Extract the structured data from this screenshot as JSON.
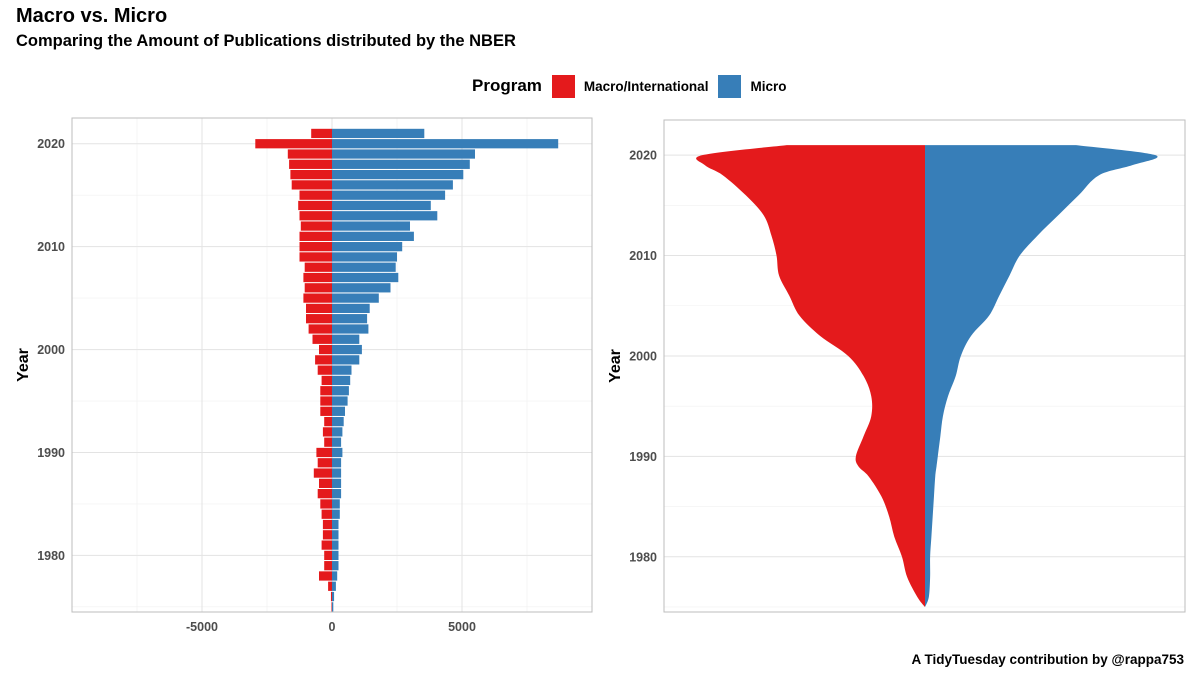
{
  "header": {
    "title": "Macro vs. Micro",
    "subtitle": "Comparing the Amount of Publications distributed by the NBER"
  },
  "legend": {
    "title": "Program",
    "items": [
      {
        "label": "Macro/International",
        "color": "#E41A1C"
      },
      {
        "label": "Micro",
        "color": "#377EB8"
      }
    ]
  },
  "caption": "A TidyTuesday contribution by @rappa753",
  "chart_data": [
    {
      "type": "bar",
      "orientation": "horizontal-diverging",
      "ylabel": "Year",
      "xlabel": "",
      "xlim": [
        -10000,
        10000
      ],
      "x_ticks": [
        -5000,
        0,
        5000
      ],
      "x_tick_labels": [
        "-5000",
        "0",
        "5000"
      ],
      "y_ticks": [
        1980,
        1990,
        2000,
        2010,
        2020
      ],
      "ylim": [
        1974.5,
        2022.5
      ],
      "grid": true,
      "years": [
        1975,
        1976,
        1977,
        1978,
        1979,
        1980,
        1981,
        1982,
        1983,
        1984,
        1985,
        1986,
        1987,
        1988,
        1989,
        1990,
        1991,
        1992,
        1993,
        1994,
        1995,
        1996,
        1997,
        1998,
        1999,
        2000,
        2001,
        2002,
        2003,
        2004,
        2005,
        2006,
        2007,
        2008,
        2009,
        2010,
        2011,
        2012,
        2013,
        2014,
        2015,
        2016,
        2017,
        2018,
        2019,
        2020,
        2021
      ],
      "series": [
        {
          "name": "Macro/International",
          "color": "#E41A1C",
          "values": [
            -20,
            -40,
            -150,
            -500,
            -300,
            -300,
            -400,
            -350,
            -350,
            -400,
            -450,
            -550,
            -500,
            -700,
            -550,
            -600,
            -300,
            -350,
            -300,
            -450,
            -450,
            -450,
            -400,
            -550,
            -650,
            -500,
            -750,
            -900,
            -1000,
            -1000,
            -1100,
            -1050,
            -1100,
            -1050,
            -1250,
            -1250,
            -1250,
            -1200,
            -1250,
            -1300,
            -1250,
            -1550,
            -1600,
            -1650,
            -1700,
            -2950,
            -800
          ]
        },
        {
          "name": "Micro",
          "color": "#377EB8",
          "values": [
            50,
            80,
            150,
            200,
            250,
            250,
            250,
            250,
            250,
            300,
            300,
            350,
            350,
            350,
            350,
            400,
            350,
            400,
            450,
            500,
            600,
            650,
            700,
            750,
            1050,
            1150,
            1050,
            1400,
            1350,
            1450,
            1800,
            2250,
            2550,
            2450,
            2500,
            2700,
            3150,
            3000,
            4050,
            3800,
            4350,
            4650,
            5050,
            5300,
            5500,
            8700,
            3550
          ]
        }
      ]
    },
    {
      "type": "area",
      "subtype": "mirrored-density",
      "ylabel": "Year",
      "xlabel": "",
      "y_ticks": [
        1980,
        1990,
        2000,
        2010,
        2020
      ],
      "ylim": [
        1974.5,
        2023.5
      ],
      "grid": true,
      "years": [
        1975,
        1976,
        1978,
        1980,
        1982,
        1984,
        1986,
        1988,
        1989,
        1990,
        1992,
        1994,
        1996,
        1998,
        2000,
        2002,
        2004,
        2006,
        2008,
        2010,
        2012,
        2014,
        2016,
        2018,
        2019,
        2020,
        2021
      ],
      "series": [
        {
          "name": "Macro/International",
          "color": "#E41A1C",
          "values": [
            0.0,
            0.03,
            0.07,
            0.09,
            0.12,
            0.14,
            0.17,
            0.22,
            0.26,
            0.27,
            0.24,
            0.21,
            0.21,
            0.24,
            0.3,
            0.41,
            0.49,
            0.53,
            0.57,
            0.58,
            0.6,
            0.63,
            0.7,
            0.79,
            0.86,
            0.87,
            0.54
          ]
        },
        {
          "name": "Micro",
          "color": "#377EB8",
          "values": [
            0.0,
            0.015,
            0.02,
            0.02,
            0.025,
            0.03,
            0.035,
            0.04,
            0.045,
            0.05,
            0.06,
            0.07,
            0.09,
            0.12,
            0.14,
            0.18,
            0.25,
            0.29,
            0.33,
            0.37,
            0.44,
            0.52,
            0.6,
            0.68,
            0.81,
            0.9,
            0.59
          ]
        }
      ]
    }
  ]
}
